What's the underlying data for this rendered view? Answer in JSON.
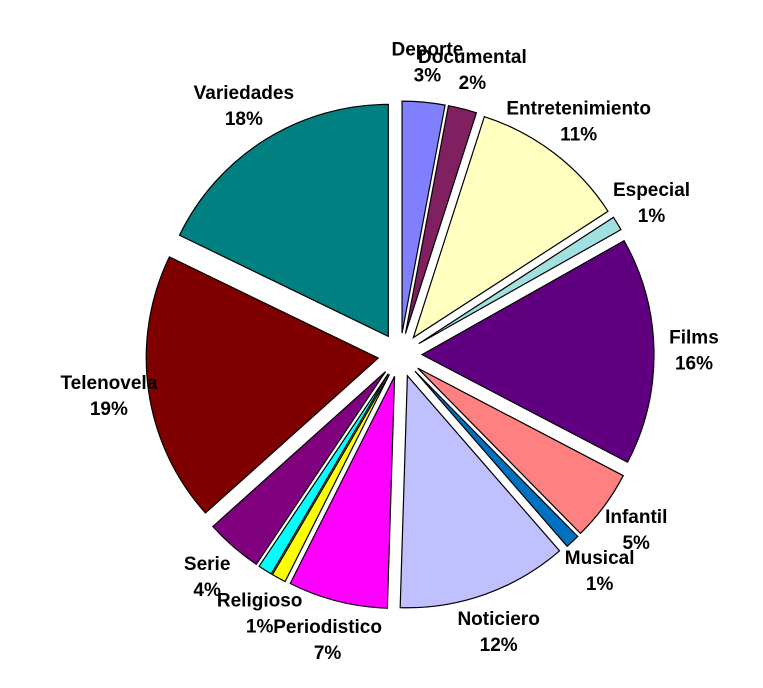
{
  "chart_data": {
    "type": "pie",
    "categories": [
      "Deporte",
      "Documental",
      "Entretenimiento",
      "Especial",
      "Films",
      "Infantil",
      "Musical",
      "Noticiero",
      "Periodistico",
      "Religioso",
      null,
      "Serie",
      "Telenovela",
      "Variedades"
    ],
    "values": [
      3,
      2,
      11,
      1,
      16,
      5,
      1,
      12,
      7,
      1,
      1,
      4,
      19,
      18
    ],
    "value_labels": [
      "3%",
      "2%",
      "11%",
      "1%",
      "16%",
      "5%",
      "1%",
      "12%",
      "7%",
      "1%",
      null,
      "4%",
      "19%",
      "18%"
    ],
    "colors": [
      "#8080ff",
      "#802060",
      "#ffffc0",
      "#a0e0e0",
      "#600080",
      "#ff8080",
      "#0070c0",
      "#c0c0ff",
      "#ff00ff",
      "#ffff00",
      "#00ffff",
      "#800080",
      "#800000",
      "#008080"
    ]
  }
}
